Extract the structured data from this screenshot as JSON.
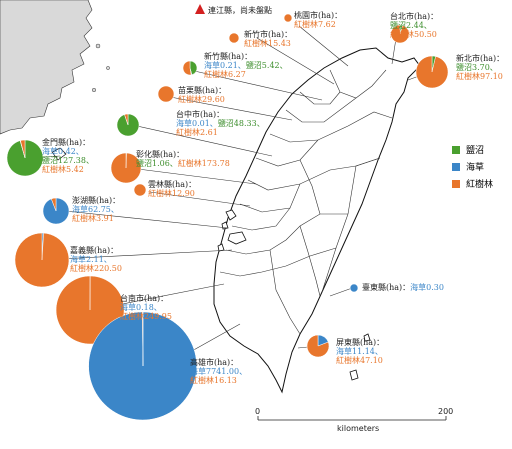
{
  "note": "連江縣，尚未盤點",
  "colors": {
    "salt_marsh": "#4aa02f",
    "seagrass": "#3b86c8",
    "mangrove": "#e8762c",
    "note_marker": "#d32020"
  },
  "legend": [
    {
      "key": "salt_marsh",
      "label": "鹽沼"
    },
    {
      "key": "seagrass",
      "label": "海草"
    },
    {
      "key": "mangrove",
      "label": "紅樹林"
    }
  ],
  "scale": {
    "start": "0",
    "end": "200",
    "unit": "kilometers"
  },
  "regions": [
    {
      "id": "taipei",
      "title": "台北市(ha)：",
      "lines": [
        {
          "text": "鹽沼2.44、",
          "type": "salt_marsh"
        },
        {
          "text": "紅樹林50.50",
          "type": "mangrove"
        }
      ],
      "values": {
        "salt_marsh": 2.44,
        "seagrass": 0,
        "mangrove": 50.5
      }
    },
    {
      "id": "taoyuan",
      "title": "桃園市(ha)：",
      "lines": [
        {
          "text": "紅樹林7.62",
          "type": "mangrove"
        }
      ],
      "values": {
        "salt_marsh": 0,
        "seagrass": 0,
        "mangrove": 7.62
      }
    },
    {
      "id": "hsinchu-city",
      "title": "新竹市(ha)：",
      "lines": [
        {
          "text": "紅樹林15.43",
          "type": "mangrove"
        }
      ],
      "values": {
        "salt_marsh": 0,
        "seagrass": 0,
        "mangrove": 15.43
      }
    },
    {
      "id": "new-taipei",
      "title": "新北市(ha)：",
      "lines": [
        {
          "text": "鹽沼3.70、",
          "type": "salt_marsh"
        },
        {
          "text": "紅樹林97.10",
          "type": "mangrove"
        }
      ],
      "values": {
        "salt_marsh": 3.7,
        "seagrass": 0,
        "mangrove": 97.1
      }
    },
    {
      "id": "hsinchu-county",
      "title": "新竹縣(ha)：",
      "lines": [
        {
          "text": "海草0.21、",
          "type": "seagrass"
        },
        {
          "text": "鹽沼5.42、",
          "type": "salt_marsh"
        },
        {
          "text": "紅樹林6.27",
          "type": "mangrove"
        }
      ],
      "values": {
        "salt_marsh": 5.42,
        "seagrass": 0.21,
        "mangrove": 6.27
      }
    },
    {
      "id": "miaoli",
      "title": "苗栗縣(ha)：",
      "lines": [
        {
          "text": "紅樹林29.60",
          "type": "mangrove"
        }
      ],
      "values": {
        "salt_marsh": 0,
        "seagrass": 0,
        "mangrove": 29.6
      }
    },
    {
      "id": "taichung",
      "title": "台中市(ha)：",
      "lines": [
        {
          "text": "海草0.01、",
          "type": "seagrass"
        },
        {
          "text": "鹽沼48.33、",
          "type": "salt_marsh"
        },
        {
          "text": "紅樹林2.61",
          "type": "mangrove"
        }
      ],
      "values": {
        "salt_marsh": 48.33,
        "seagrass": 0.01,
        "mangrove": 2.61
      }
    },
    {
      "id": "kinmen",
      "title": "金門縣(ha)：",
      "lines": [
        {
          "text": "海草0.42、",
          "type": "seagrass"
        },
        {
          "text": "鹽沼127.38、",
          "type": "salt_marsh"
        },
        {
          "text": "紅樹林5.42",
          "type": "mangrove"
        }
      ],
      "values": {
        "salt_marsh": 127.38,
        "seagrass": 0.42,
        "mangrove": 5.42
      }
    },
    {
      "id": "changhua",
      "title": "彰化縣(ha)：",
      "lines": [
        {
          "text": "鹽沼1.06、",
          "type": "salt_marsh"
        },
        {
          "text": "紅樹林173.78",
          "type": "mangrove"
        }
      ],
      "values": {
        "salt_marsh": 1.06,
        "seagrass": 0,
        "mangrove": 173.78
      }
    },
    {
      "id": "yunlin",
      "title": "雲林縣(ha)：",
      "lines": [
        {
          "text": "紅樹林12.90",
          "type": "mangrove"
        }
      ],
      "values": {
        "salt_marsh": 0,
        "seagrass": 0,
        "mangrove": 12.9
      }
    },
    {
      "id": "penghu",
      "title": "澎湖縣(ha)：",
      "lines": [
        {
          "text": "海草62.75、",
          "type": "seagrass"
        },
        {
          "text": "紅樹林3.91",
          "type": "mangrove"
        }
      ],
      "values": {
        "salt_marsh": 0,
        "seagrass": 62.75,
        "mangrove": 3.91
      }
    },
    {
      "id": "chiayi",
      "title": "嘉義縣(ha)：",
      "lines": [
        {
          "text": "海草2.11、",
          "type": "seagrass"
        },
        {
          "text": "紅樹林220.50",
          "type": "mangrove"
        }
      ],
      "values": {
        "salt_marsh": 0,
        "seagrass": 2.11,
        "mangrove": 220.5
      }
    },
    {
      "id": "tainan",
      "title": "台南市(ha)：",
      "lines": [
        {
          "text": "海草0.18、",
          "type": "seagrass"
        },
        {
          "text": "紅樹林249.95",
          "type": "mangrove"
        }
      ],
      "values": {
        "salt_marsh": 0,
        "seagrass": 0.18,
        "mangrove": 249.95
      }
    },
    {
      "id": "kaohsiung",
      "title": "高雄市(ha)：",
      "lines": [
        {
          "text": "海草7741.00、",
          "type": "seagrass"
        },
        {
          "text": "紅樹林16.13",
          "type": "mangrove"
        }
      ],
      "values": {
        "salt_marsh": 0,
        "seagrass": 7741.0,
        "mangrove": 16.13
      }
    },
    {
      "id": "taitung",
      "title": "臺東縣(ha)：",
      "lines": [
        {
          "text": "海草0.30",
          "type": "seagrass"
        }
      ],
      "values": {
        "salt_marsh": 0,
        "seagrass": 0.3,
        "mangrove": 0
      }
    },
    {
      "id": "pingtung",
      "title": "屏東縣(ha)：",
      "lines": [
        {
          "text": "海草11.14、",
          "type": "seagrass"
        },
        {
          "text": "紅樹林47.10",
          "type": "mangrove"
        }
      ],
      "values": {
        "salt_marsh": 0,
        "seagrass": 11.14,
        "mangrove": 47.1
      }
    }
  ]
}
